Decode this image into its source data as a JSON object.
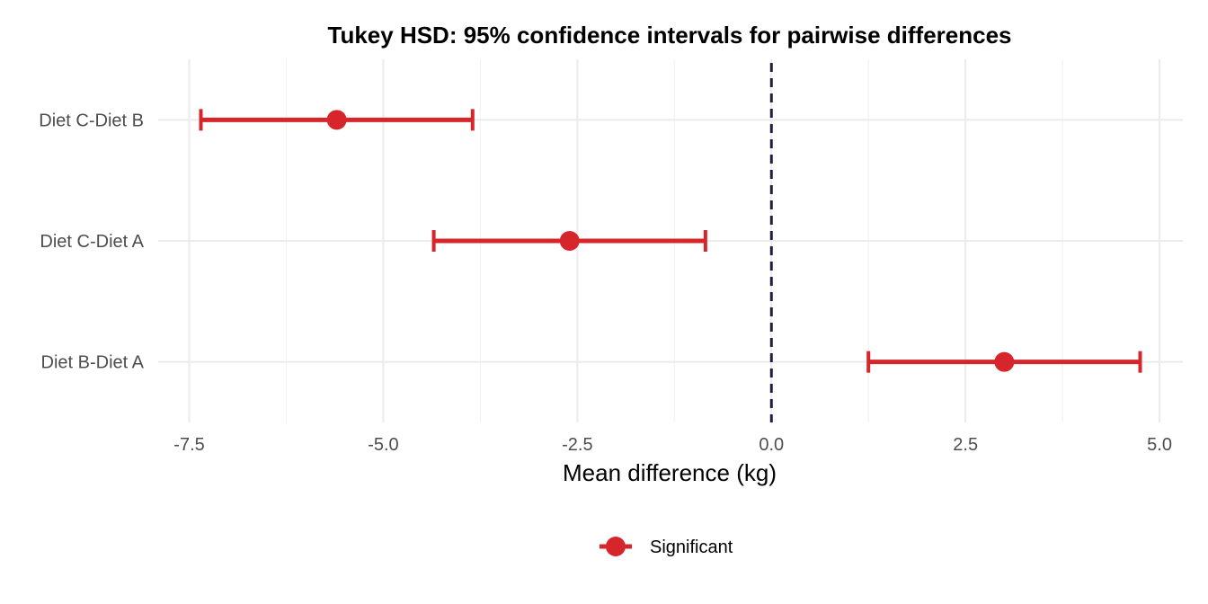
{
  "chart_data": {
    "type": "errorbar",
    "title": "Tukey HSD: 95% confidence intervals for pairwise differences",
    "xlabel": "Mean difference (kg)",
    "ylabel": "",
    "xlim": [
      -7.9,
      5.3
    ],
    "x_ticks": [
      -7.5,
      -5.0,
      -2.5,
      0.0,
      2.5,
      5.0
    ],
    "x_tick_labels": [
      "-7.5",
      "-5.0",
      "-2.5",
      "0.0",
      "2.5",
      "5.0"
    ],
    "grid": true,
    "reference_line": {
      "x": 0,
      "style": "dashed",
      "color": "#1f1f3d"
    },
    "categories": [
      "Diet C-Diet B",
      "Diet C-Diet A",
      "Diet B-Diet A"
    ],
    "series": [
      {
        "name": "Significant",
        "color": "#d7262b",
        "points": [
          {
            "label": "Diet C-Diet B",
            "estimate": -5.6,
            "lower": -7.35,
            "upper": -3.85
          },
          {
            "label": "Diet C-Diet A",
            "estimate": -2.6,
            "lower": -4.35,
            "upper": -0.85
          },
          {
            "label": "Diet B-Diet A",
            "estimate": 3.0,
            "lower": 1.25,
            "upper": 4.75
          }
        ]
      }
    ],
    "legend": {
      "position": "bottom"
    }
  }
}
